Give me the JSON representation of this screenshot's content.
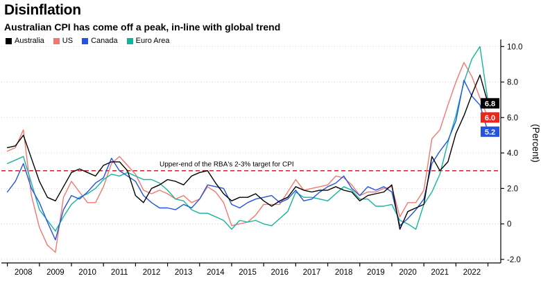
{
  "header": {
    "title": "Disinflation",
    "subtitle": "Australian CPI has come off a peak, in-line with global trend"
  },
  "legend": [
    {
      "label": "Australia",
      "color": "#000000"
    },
    {
      "label": "US",
      "color": "#f4776d"
    },
    {
      "label": "Canada",
      "color": "#2453e0"
    },
    {
      "label": "Euro Area",
      "color": "#12b59b"
    }
  ],
  "annotation": {
    "text": "Upper-end of the RBA's 2-3% target for CPI",
    "line_value": 3.0,
    "line_color": "#d0202e"
  },
  "end_labels": [
    {
      "series": "Australia",
      "value": "6.8",
      "color": "#000000"
    },
    {
      "series": "US",
      "value": "6.0",
      "color": "#e8271d"
    },
    {
      "series": "Canada",
      "value": "5.2",
      "color": "#2453e0"
    }
  ],
  "y_axis": {
    "label": "(Percent)",
    "ticks": [
      "10.0",
      "8.0",
      "6.0",
      "4.0",
      "2.0",
      "0",
      "-2.0"
    ],
    "tick_values": [
      10,
      8,
      6,
      4,
      2,
      0,
      -2
    ]
  },
  "x_axis": {
    "years": [
      "2008",
      "2009",
      "2010",
      "2011",
      "2012",
      "2013",
      "2014",
      "2015",
      "2016",
      "2017",
      "2018",
      "2019",
      "2020",
      "2021",
      "2022"
    ]
  },
  "chart_data": {
    "type": "line",
    "title": "Disinflation",
    "subtitle": "Australian CPI has come off a peak, in-line with global trend",
    "ylabel": "(Percent)",
    "ylim": [
      -2.2,
      10.4
    ],
    "xlim": [
      2007.9,
      2023.4
    ],
    "x_unit": "year (quarterly CPI YoY, %)",
    "x": [
      2008.0,
      2008.25,
      2008.5,
      2008.75,
      2009.0,
      2009.25,
      2009.5,
      2009.75,
      2010.0,
      2010.25,
      2010.5,
      2010.75,
      2011.0,
      2011.25,
      2011.5,
      2011.75,
      2012.0,
      2012.25,
      2012.5,
      2012.75,
      2013.0,
      2013.25,
      2013.5,
      2013.75,
      2014.0,
      2014.25,
      2014.5,
      2014.75,
      2015.0,
      2015.25,
      2015.5,
      2015.75,
      2016.0,
      2016.25,
      2016.5,
      2016.75,
      2017.0,
      2017.25,
      2017.5,
      2017.75,
      2018.0,
      2018.25,
      2018.5,
      2018.75,
      2019.0,
      2019.25,
      2019.5,
      2019.75,
      2020.0,
      2020.25,
      2020.5,
      2020.75,
      2021.0,
      2021.25,
      2021.5,
      2021.75,
      2022.0,
      2022.25,
      2022.5,
      2022.75,
      2023.0
    ],
    "series": [
      {
        "name": "Australia",
        "color": "#000000",
        "values": [
          4.3,
          4.4,
          5.0,
          3.7,
          2.4,
          1.5,
          1.3,
          2.1,
          2.9,
          3.1,
          2.9,
          2.7,
          3.3,
          3.5,
          3.5,
          3.0,
          1.6,
          1.2,
          2.0,
          2.2,
          2.5,
          2.4,
          2.2,
          2.7,
          2.9,
          3.0,
          2.3,
          1.7,
          1.3,
          1.5,
          1.5,
          1.7,
          1.3,
          1.0,
          1.3,
          1.5,
          2.1,
          1.9,
          1.8,
          1.9,
          1.9,
          2.1,
          1.9,
          1.8,
          1.3,
          1.6,
          1.7,
          1.8,
          2.2,
          -0.3,
          0.7,
          0.9,
          1.1,
          3.8,
          3.0,
          3.5,
          5.1,
          6.1,
          7.3,
          8.4,
          6.8
        ]
      },
      {
        "name": "US",
        "color": "#f4776d",
        "values": [
          4.1,
          4.3,
          5.3,
          1.6,
          -0.2,
          -1.2,
          -1.6,
          1.5,
          2.4,
          1.8,
          1.2,
          1.2,
          2.1,
          3.4,
          3.8,
          3.3,
          2.8,
          1.9,
          1.7,
          1.9,
          1.7,
          1.4,
          1.6,
          1.2,
          1.4,
          2.1,
          1.8,
          1.2,
          -0.1,
          0.0,
          0.1,
          0.5,
          1.1,
          1.1,
          1.1,
          1.8,
          2.5,
          1.9,
          2.0,
          2.1,
          2.2,
          2.7,
          2.6,
          2.2,
          1.6,
          1.8,
          1.8,
          2.0,
          2.1,
          0.4,
          1.2,
          1.2,
          1.9,
          4.8,
          5.3,
          6.7,
          8.0,
          9.1,
          8.3,
          7.1,
          6.0
        ]
      },
      {
        "name": "Canada",
        "color": "#2453e0",
        "values": [
          1.8,
          2.4,
          3.4,
          2.0,
          1.2,
          0.1,
          -0.9,
          0.8,
          1.6,
          1.4,
          1.8,
          2.3,
          2.6,
          3.7,
          3.0,
          2.7,
          2.4,
          1.6,
          1.2,
          0.9,
          0.9,
          0.8,
          1.1,
          0.9,
          1.4,
          2.2,
          2.1,
          2.0,
          1.1,
          0.9,
          1.2,
          1.4,
          1.5,
          1.6,
          1.2,
          1.4,
          1.9,
          1.3,
          1.4,
          1.8,
          2.1,
          2.3,
          2.7,
          2.0,
          1.6,
          2.1,
          1.9,
          2.1,
          1.8,
          -0.1,
          0.3,
          0.8,
          1.4,
          3.4,
          4.1,
          4.7,
          5.8,
          8.1,
          7.2,
          6.7,
          5.2
        ]
      },
      {
        "name": "Euro Area",
        "color": "#12b59b",
        "values": [
          3.4,
          3.6,
          3.8,
          2.3,
          0.8,
          0.2,
          -0.4,
          0.4,
          1.1,
          1.5,
          1.7,
          2.0,
          2.5,
          2.8,
          2.7,
          2.9,
          2.7,
          2.5,
          2.5,
          2.3,
          1.9,
          1.4,
          1.3,
          0.8,
          0.6,
          0.6,
          0.4,
          0.2,
          -0.3,
          0.2,
          0.1,
          0.2,
          0.0,
          -0.1,
          0.3,
          0.7,
          1.8,
          1.5,
          1.5,
          1.4,
          1.3,
          1.7,
          2.1,
          1.9,
          1.4,
          1.4,
          1.0,
          1.0,
          1.1,
          0.2,
          0.0,
          -0.3,
          1.1,
          1.8,
          2.8,
          4.6,
          6.1,
          8.0,
          9.3,
          10.0,
          6.9
        ]
      }
    ],
    "reference_line": {
      "value": 3.0,
      "label": "Upper-end of the RBA's 2-3% target for CPI"
    },
    "legend_position": "top-left",
    "grid": "horizontal-dotted"
  }
}
